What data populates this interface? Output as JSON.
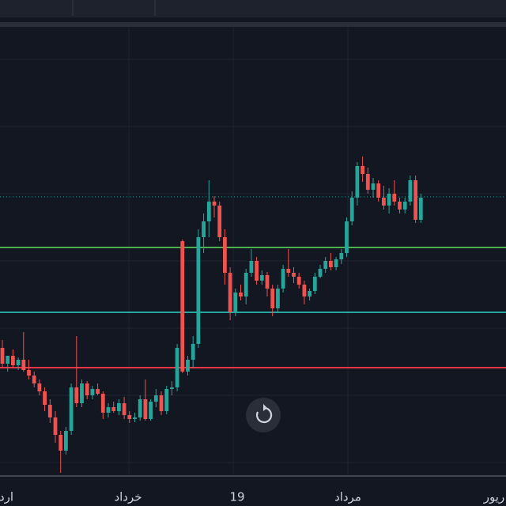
{
  "chart_data": {
    "type": "candlestick",
    "up_color": "#26a69a",
    "down_color": "#ef5350",
    "ylim": [
      0,
      565
    ],
    "x_labels": [
      "ارد",
      "خرداد",
      "19",
      "مرداد",
      "ریور"
    ],
    "levels": [
      {
        "value": 351,
        "color": "#26a69a",
        "style": "dotted"
      },
      {
        "value": 287,
        "color": "#4caf50",
        "style": "solid"
      },
      {
        "value": 205,
        "color": "#26a69a",
        "style": "solid"
      },
      {
        "value": 135,
        "color": "#f23645",
        "style": "solid"
      }
    ],
    "candles": [
      [
        160,
        170,
        135,
        140
      ],
      [
        140,
        150,
        130,
        150
      ],
      [
        150,
        158,
        135,
        138
      ],
      [
        138,
        148,
        132,
        145
      ],
      [
        145,
        180,
        130,
        132
      ],
      [
        132,
        145,
        120,
        125
      ],
      [
        125,
        130,
        110,
        115
      ],
      [
        115,
        120,
        100,
        105
      ],
      [
        105,
        110,
        80,
        88
      ],
      [
        88,
        95,
        65,
        72
      ],
      [
        72,
        80,
        40,
        50
      ],
      [
        50,
        55,
        2,
        30
      ],
      [
        30,
        60,
        25,
        55
      ],
      [
        55,
        115,
        50,
        110
      ],
      [
        110,
        175,
        85,
        90
      ],
      [
        90,
        120,
        85,
        115
      ],
      [
        115,
        118,
        95,
        100
      ],
      [
        100,
        112,
        95,
        108
      ],
      [
        108,
        115,
        100,
        102
      ],
      [
        102,
        105,
        70,
        78
      ],
      [
        78,
        90,
        72,
        85
      ],
      [
        85,
        92,
        78,
        80
      ],
      [
        80,
        95,
        75,
        90
      ],
      [
        90,
        98,
        70,
        75
      ],
      [
        75,
        80,
        65,
        70
      ],
      [
        70,
        78,
        66,
        72
      ],
      [
        72,
        100,
        68,
        95
      ],
      [
        95,
        120,
        68,
        70
      ],
      [
        70,
        95,
        68,
        92
      ],
      [
        92,
        108,
        85,
        100
      ],
      [
        100,
        105,
        75,
        80
      ],
      [
        80,
        112,
        76,
        108
      ],
      [
        108,
        118,
        100,
        110
      ],
      [
        110,
        165,
        105,
        160
      ],
      [
        295,
        297,
        128,
        130
      ],
      [
        130,
        150,
        125,
        145
      ],
      [
        145,
        175,
        135,
        165
      ],
      [
        165,
        310,
        160,
        300
      ],
      [
        300,
        330,
        280,
        320
      ],
      [
        320,
        372,
        300,
        345
      ],
      [
        345,
        352,
        325,
        340
      ],
      [
        340,
        345,
        295,
        300
      ],
      [
        300,
        310,
        240,
        255
      ],
      [
        255,
        262,
        195,
        205
      ],
      [
        205,
        235,
        200,
        230
      ],
      [
        230,
        240,
        220,
        225
      ],
      [
        225,
        260,
        215,
        255
      ],
      [
        255,
        285,
        250,
        270
      ],
      [
        270,
        275,
        240,
        245
      ],
      [
        245,
        258,
        240,
        252
      ],
      [
        252,
        256,
        225,
        235
      ],
      [
        235,
        240,
        200,
        210
      ],
      [
        210,
        240,
        205,
        235
      ],
      [
        235,
        265,
        230,
        260
      ],
      [
        260,
        285,
        250,
        255
      ],
      [
        255,
        262,
        242,
        250
      ],
      [
        250,
        255,
        235,
        240
      ],
      [
        240,
        245,
        215,
        225
      ],
      [
        225,
        235,
        220,
        232
      ],
      [
        232,
        255,
        228,
        250
      ],
      [
        250,
        265,
        248,
        260
      ],
      [
        260,
        275,
        255,
        270
      ],
      [
        270,
        280,
        258,
        262
      ],
      [
        262,
        275,
        258,
        272
      ],
      [
        272,
        285,
        266,
        280
      ],
      [
        280,
        325,
        275,
        320
      ],
      [
        320,
        358,
        315,
        350
      ],
      [
        350,
        395,
        340,
        390
      ],
      [
        390,
        402,
        370,
        380
      ],
      [
        380,
        388,
        355,
        360
      ],
      [
        360,
        375,
        350,
        368
      ],
      [
        368,
        372,
        345,
        350
      ],
      [
        350,
        365,
        335,
        340
      ],
      [
        340,
        362,
        330,
        355
      ],
      [
        355,
        372,
        340,
        345
      ],
      [
        345,
        350,
        330,
        335
      ],
      [
        335,
        350,
        330,
        345
      ],
      [
        345,
        378,
        340,
        372
      ],
      [
        372,
        378,
        318,
        322
      ],
      [
        322,
        355,
        318,
        350
      ]
    ]
  }
}
